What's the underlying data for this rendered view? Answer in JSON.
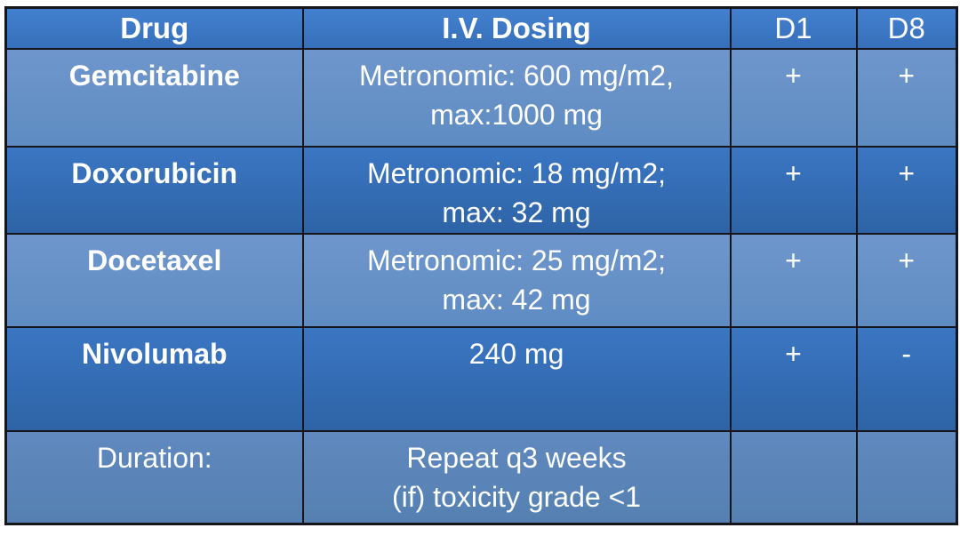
{
  "table": {
    "header": {
      "drug": "Drug",
      "dosing": "I.V. Dosing",
      "d1": "D1",
      "d8": "D8"
    },
    "rows": [
      {
        "drug": "Gemcitabine",
        "dosing_line1": "Metronomic: 600 mg/m2,",
        "dosing_line2": "max:1000 mg",
        "d1": "+",
        "d8": "+"
      },
      {
        "drug": "Doxorubicin",
        "dosing_line1": "Metronomic: 18 mg/m2;",
        "dosing_line2": "max: 32 mg",
        "d1": "+",
        "d8": "+"
      },
      {
        "drug": "Docetaxel",
        "dosing_line1": "Metronomic: 25 mg/m2;",
        "dosing_line2": "max: 42 mg",
        "d1": "+",
        "d8": "+"
      },
      {
        "drug": "Nivolumab",
        "dosing_line1": "240 mg",
        "dosing_line2": "",
        "d1": "+",
        "d8": "-"
      },
      {
        "drug": "Duration:",
        "dosing_line1": "Repeat q3 weeks",
        "dosing_line2": "(if) toxicity grade <1",
        "d1": "",
        "d8": ""
      }
    ],
    "colors": {
      "header_blue": "#3b7ac9",
      "dark_row_blue": "#3470ba",
      "light_row_blue": "#6592c9",
      "duration_row_blue": "#5a84b8",
      "grid_border": "#15151b",
      "text": "#ffffff"
    }
  }
}
